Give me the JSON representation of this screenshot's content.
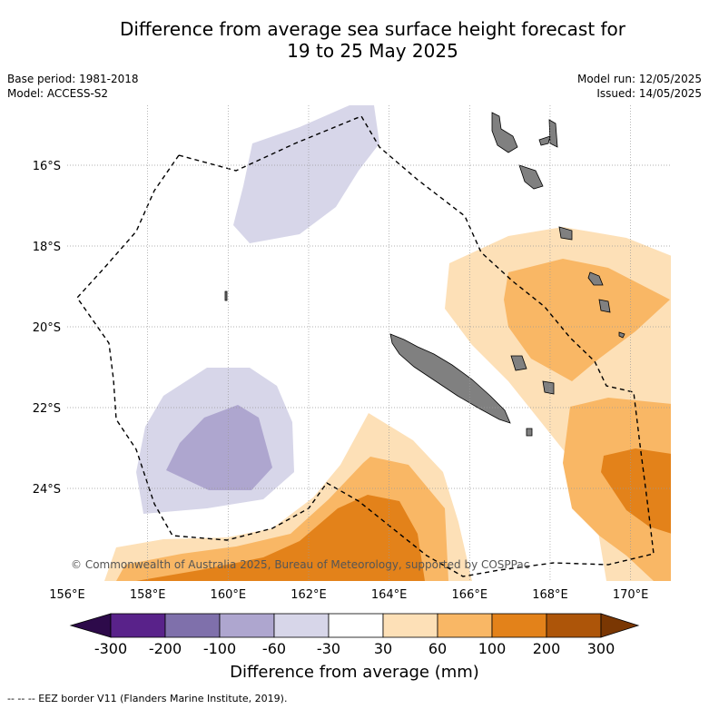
{
  "title_line1": "Difference from average sea surface height forecast for",
  "title_line2": "19 to 25 May 2025",
  "meta_left": [
    "Base period: 1981-2018",
    "Model: ACCESS-S2"
  ],
  "meta_right": [
    "Model run: 12/05/2025",
    "Issued: 14/05/2025"
  ],
  "map": {
    "lon_range": [
      156,
      171
    ],
    "lat_range": [
      -26.3,
      -14.6
    ],
    "lon_ticks": [
      "156°E",
      "158°E",
      "160°E",
      "162°E",
      "164°E",
      "166°E",
      "168°E",
      "170°E"
    ],
    "lat_ticks": [
      "16°S",
      "18°S",
      "20°S",
      "22°S",
      "24°S"
    ],
    "copyright": "© Commonwealth of Australia 2025, Bureau of Meteorology, supported by COSPPac",
    "land_color": "#808080"
  },
  "colorbar": {
    "label": "Difference from average (mm)",
    "tick_labels": [
      "-300",
      "-200",
      "-100",
      "-60",
      "-30",
      "30",
      "60",
      "100",
      "200",
      "300"
    ],
    "colors": {
      "below_min": "#2d0a4a",
      "bins": [
        "#59228a",
        "#7f70ab",
        "#aea6cf",
        "#d7d6e9",
        "#ffffff",
        "#fde0b7",
        "#f9b765",
        "#e3821a",
        "#ad5509"
      ],
      "above_max": "#7a3703"
    }
  },
  "footnote": "-- -- -- EEZ border V11 (Flanders Marine Institute, 2019)."
}
